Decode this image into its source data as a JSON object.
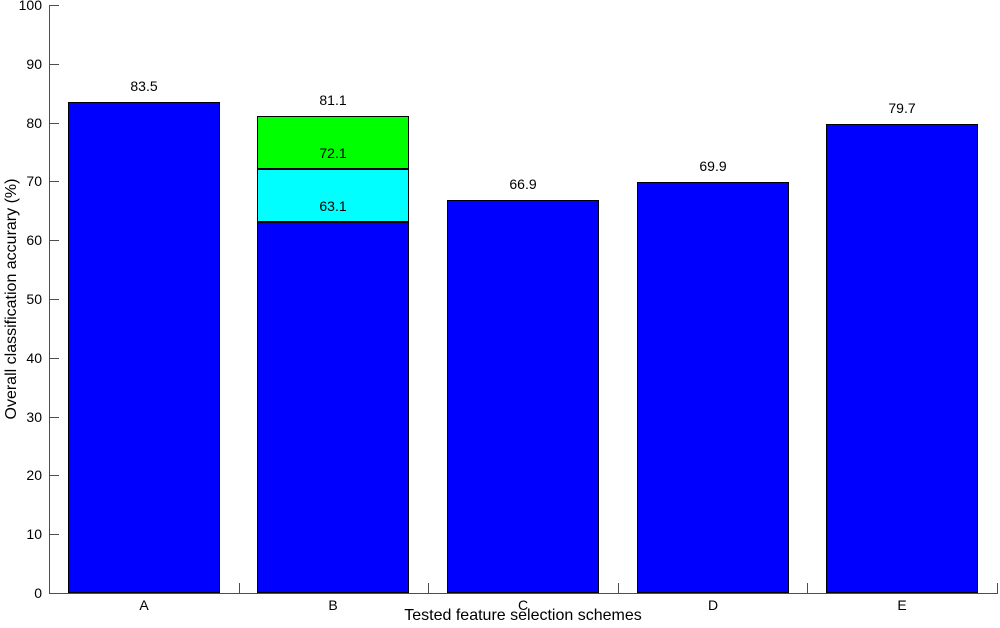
{
  "figure": {
    "background": "#ffffff",
    "text_color": "#000000"
  },
  "chart_data": {
    "type": "bar",
    "title": "",
    "xlabel": "Tested feature selection schemes",
    "ylabel": "Overall classification accurary (%)",
    "ylim": [
      0,
      100
    ],
    "yticks": [
      0,
      10,
      20,
      30,
      40,
      50,
      60,
      70,
      80,
      90,
      100
    ],
    "categories": [
      "A",
      "B",
      "C",
      "D",
      "E"
    ],
    "bar_width_fraction": 0.8,
    "grid": false,
    "legend": null,
    "colors": {
      "bar_blue": "#0000ff",
      "bar_cyan": "#00ffff",
      "bar_green": "#00ff00",
      "bar_edge": "#000000",
      "axis": "#4d4d4d"
    },
    "bars": [
      {
        "category": "A",
        "segments": [
          {
            "to": 83.5,
            "color": "#0000ff"
          }
        ],
        "labels": [
          {
            "text": "83.5",
            "at": 83.5
          }
        ]
      },
      {
        "category": "B",
        "segments": [
          {
            "to": 63.1,
            "color": "#0000ff"
          },
          {
            "to": 72.1,
            "color": "#00ffff"
          },
          {
            "to": 81.1,
            "color": "#00ff00"
          }
        ],
        "labels": [
          {
            "text": "63.1",
            "at": 63.1
          },
          {
            "text": "72.1",
            "at": 72.1
          },
          {
            "text": "81.1",
            "at": 81.1
          }
        ]
      },
      {
        "category": "C",
        "segments": [
          {
            "to": 66.9,
            "color": "#0000ff"
          }
        ],
        "labels": [
          {
            "text": "66.9",
            "at": 66.9
          }
        ]
      },
      {
        "category": "D",
        "segments": [
          {
            "to": 69.9,
            "color": "#0000ff"
          }
        ],
        "labels": [
          {
            "text": "69.9",
            "at": 69.9
          }
        ]
      },
      {
        "category": "E",
        "segments": [
          {
            "to": 79.7,
            "color": "#0000ff"
          }
        ],
        "labels": [
          {
            "text": "79.7",
            "at": 79.7
          }
        ]
      }
    ]
  }
}
